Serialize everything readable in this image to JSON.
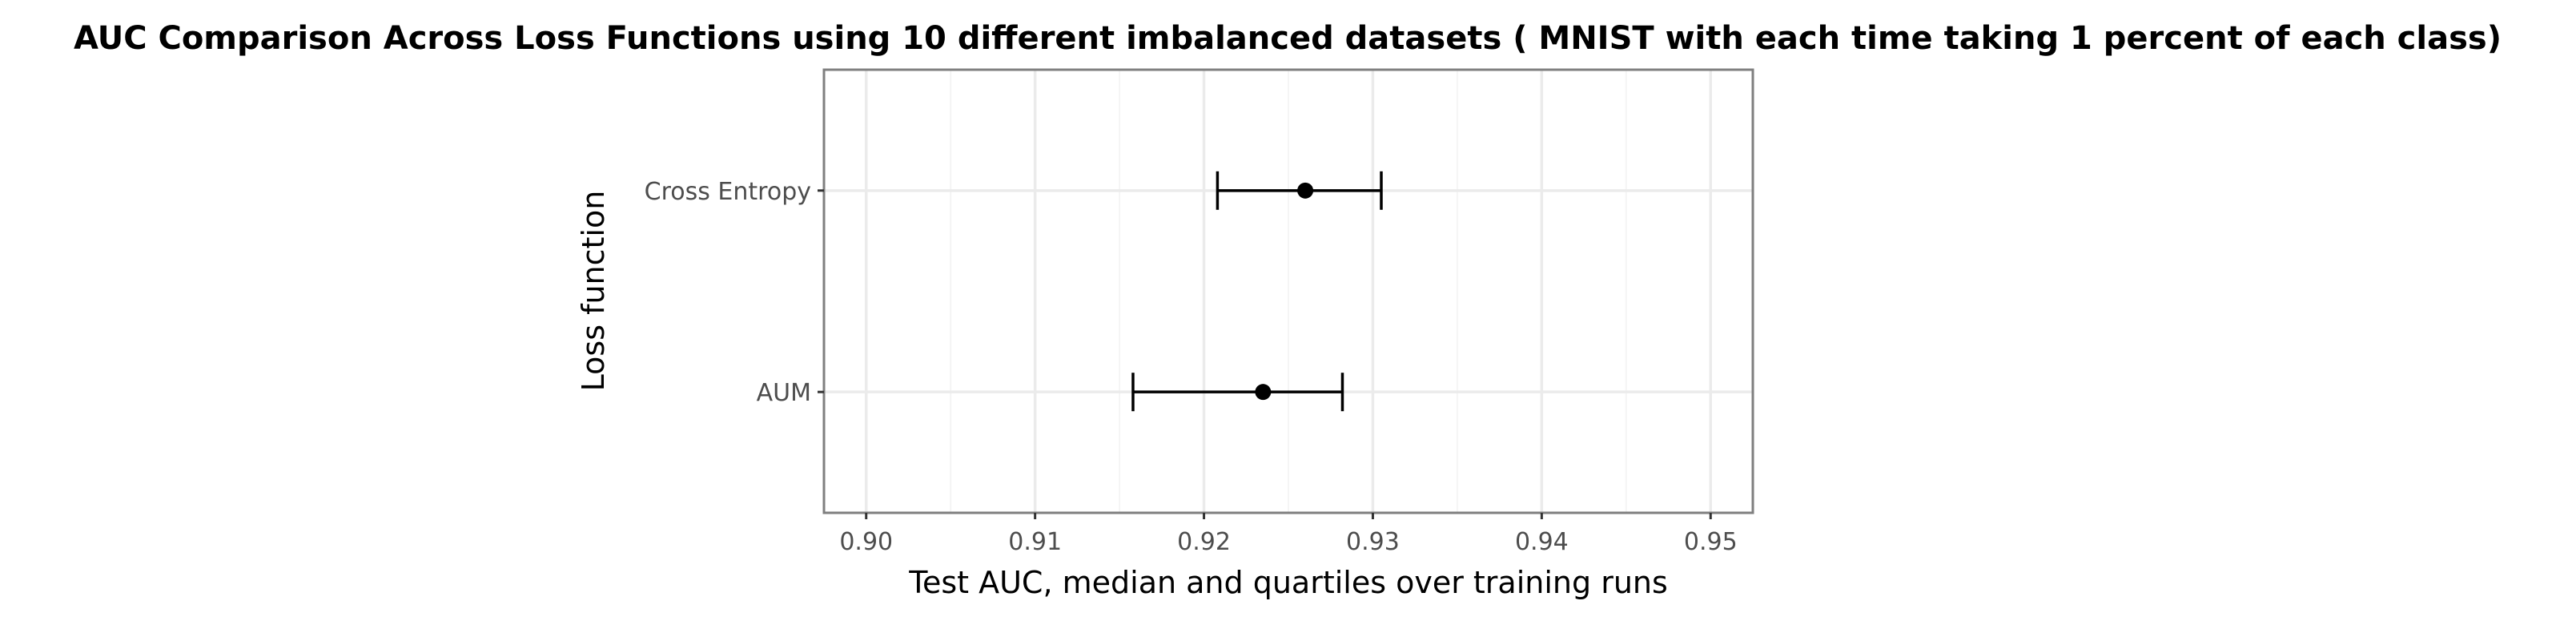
{
  "chart_data": {
    "type": "scatter",
    "title": "AUC Comparison Across Loss Functions using 10 different imbalanced datasets ( MNIST with each time taking 1 percent of each class)",
    "xlabel": "Test AUC, median and quartiles over training runs",
    "ylabel": "Loss function",
    "xlim": [
      0.8975,
      0.9525
    ],
    "x_ticks": [
      0.9,
      0.91,
      0.92,
      0.93,
      0.94,
      0.95
    ],
    "x_tick_labels": [
      "0.90",
      "0.91",
      "0.92",
      "0.93",
      "0.94",
      "0.95"
    ],
    "categories": [
      "Cross Entropy",
      "AUM"
    ],
    "series": [
      {
        "median": [
          0.926,
          0.9235
        ],
        "q1": [
          0.9208,
          0.9158
        ],
        "q3": [
          0.9305,
          0.9282
        ]
      }
    ],
    "grid": true,
    "legend": "none",
    "colors": {
      "point": "#000000",
      "errorbar": "#000000",
      "grid_major": "#ebebeb",
      "grid_minor": "#f5f5f5",
      "panel_border": "#7f7f7f",
      "tick_label": "#4d4d4d"
    }
  }
}
